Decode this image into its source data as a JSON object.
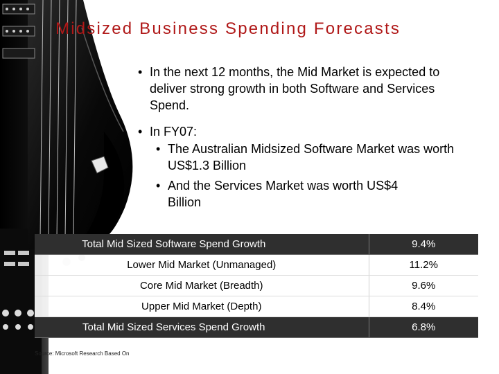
{
  "slide": {
    "title": "Midsized Business Spending Forecasts",
    "bullets": {
      "b1": "In the next 12 months, the Mid Market is expected to deliver strong growth in both Software and Services Spend.",
      "b2": "In FY07:",
      "b2a": "The Australian Midsized Software Market was worth US$1.3 Billion",
      "b2b": "And the Services Market was worth US$4 Billion"
    },
    "bullet_glyph": "•"
  },
  "table": {
    "rows": [
      {
        "label": "Total Mid Sized Software Spend Growth",
        "value": "9.4%"
      },
      {
        "label": "Lower Mid Market (Unmanaged)",
        "value": "11.2%"
      },
      {
        "label": "Core Mid Market (Breadth)",
        "value": "9.6%"
      },
      {
        "label": "Upper Mid Market (Depth)",
        "value": "8.4%"
      },
      {
        "label": "Total Mid Sized Services Spend Growth",
        "value": "6.8%"
      }
    ]
  },
  "footer": {
    "source": "Source: Microsoft Research Based On"
  },
  "colors": {
    "title": "#b01818",
    "total_row_bg": "#2f2f2f"
  }
}
